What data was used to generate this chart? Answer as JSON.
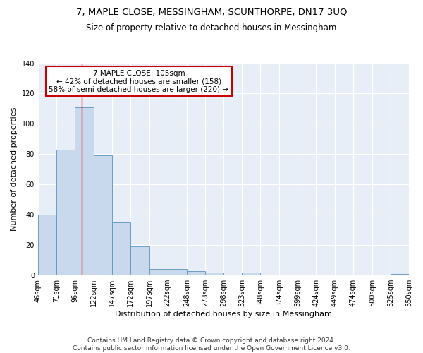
{
  "title": "7, MAPLE CLOSE, MESSINGHAM, SCUNTHORPE, DN17 3UQ",
  "subtitle": "Size of property relative to detached houses in Messingham",
  "xlabel": "Distribution of detached houses by size in Messingham",
  "ylabel": "Number of detached properties",
  "bar_edges": [
    46,
    71,
    96,
    122,
    147,
    172,
    197,
    222,
    248,
    273,
    298,
    323,
    348,
    374,
    399,
    424,
    449,
    474,
    500,
    525,
    550
  ],
  "bar_heights": [
    40,
    83,
    111,
    79,
    35,
    19,
    4,
    4,
    3,
    2,
    0,
    2,
    0,
    0,
    0,
    0,
    0,
    0,
    0,
    1
  ],
  "bar_color": "#c9d9ed",
  "bar_edge_color": "#6a9ec5",
  "background_color": "#e8eef7",
  "grid_color": "#ffffff",
  "red_line_x": 105,
  "annotation_text": "7 MAPLE CLOSE: 105sqm\n← 42% of detached houses are smaller (158)\n58% of semi-detached houses are larger (220) →",
  "annotation_box_color": "#ffffff",
  "annotation_box_edge": "#cc0000",
  "ylim": [
    0,
    140
  ],
  "yticks": [
    0,
    20,
    40,
    60,
    80,
    100,
    120,
    140
  ],
  "tick_labels": [
    "46sqm",
    "71sqm",
    "96sqm",
    "122sqm",
    "147sqm",
    "172sqm",
    "197sqm",
    "222sqm",
    "248sqm",
    "273sqm",
    "298sqm",
    "323sqm",
    "348sqm",
    "374sqm",
    "399sqm",
    "424sqm",
    "449sqm",
    "474sqm",
    "500sqm",
    "525sqm",
    "550sqm"
  ],
  "footer": "Contains HM Land Registry data © Crown copyright and database right 2024.\nContains public sector information licensed under the Open Government Licence v3.0.",
  "title_fontsize": 9.5,
  "subtitle_fontsize": 8.5,
  "ylabel_fontsize": 8,
  "xlabel_fontsize": 8,
  "tick_fontsize": 7,
  "annotation_fontsize": 7.5,
  "footer_fontsize": 6.5
}
